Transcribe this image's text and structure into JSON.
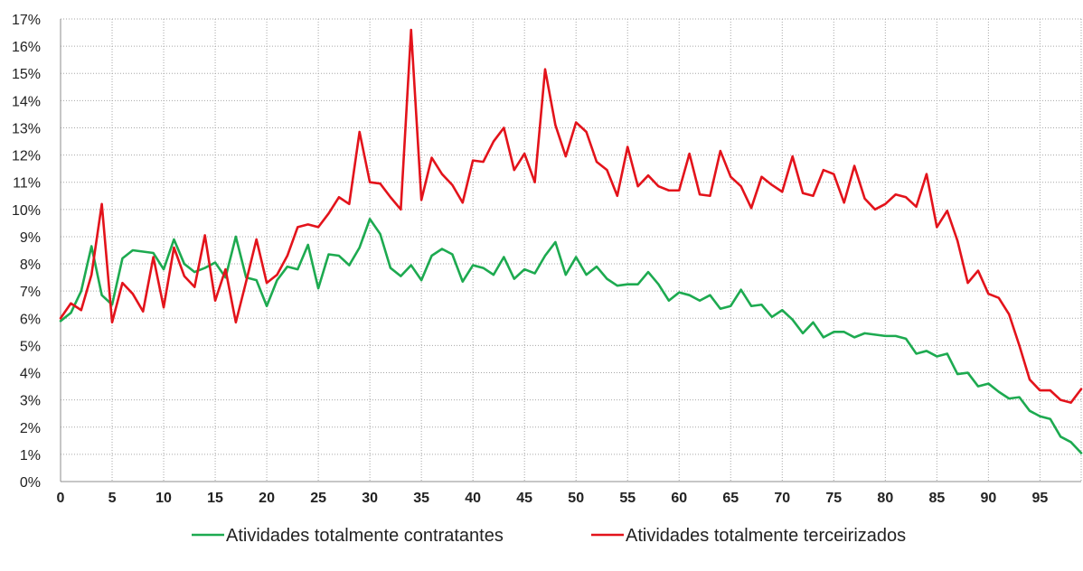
{
  "chart_data": {
    "type": "line",
    "title": "",
    "xlabel": "",
    "ylabel": "",
    "xlim": [
      0,
      99
    ],
    "ylim": [
      0,
      17
    ],
    "x_ticks": [
      0,
      5,
      10,
      15,
      20,
      25,
      30,
      35,
      40,
      45,
      50,
      55,
      60,
      65,
      70,
      75,
      80,
      85,
      90,
      95
    ],
    "x_tick_labels": [
      "0",
      "5",
      "10",
      "15",
      "20",
      "25",
      "30",
      "35",
      "40",
      "45",
      "50",
      "55",
      "60",
      "65",
      "70",
      "75",
      "80",
      "85",
      "90",
      "95"
    ],
    "y_ticks": [
      0,
      1,
      2,
      3,
      4,
      5,
      6,
      7,
      8,
      9,
      10,
      11,
      12,
      13,
      14,
      15,
      16,
      17
    ],
    "y_tick_labels": [
      "0%",
      "1%",
      "2%",
      "3%",
      "4%",
      "5%",
      "6%",
      "7%",
      "8%",
      "9%",
      "10%",
      "11%",
      "12%",
      "13%",
      "14%",
      "15%",
      "16%",
      "17%"
    ],
    "grid": "dotted",
    "legend_position": "bottom",
    "series": [
      {
        "name": "Atividades totalmente contratantes",
        "color": "#1daa50",
        "values": [
          5.9,
          6.2,
          7.0,
          8.65,
          6.85,
          6.5,
          8.2,
          8.5,
          8.45,
          8.4,
          7.8,
          8.9,
          8.0,
          7.7,
          7.85,
          8.05,
          7.5,
          9.0,
          7.5,
          7.4,
          6.45,
          7.4,
          7.9,
          7.8,
          8.7,
          7.1,
          8.35,
          8.3,
          7.95,
          8.6,
          9.65,
          9.1,
          7.85,
          7.55,
          7.95,
          7.4,
          8.3,
          8.55,
          8.35,
          7.35,
          7.95,
          7.85,
          7.6,
          8.25,
          7.45,
          7.8,
          7.65,
          8.3,
          8.8,
          7.6,
          8.25,
          7.6,
          7.9,
          7.45,
          7.2,
          7.25,
          7.25,
          7.7,
          7.25,
          6.65,
          6.95,
          6.85,
          6.65,
          6.85,
          6.35,
          6.45,
          7.05,
          6.45,
          6.5,
          6.05,
          6.3,
          5.95,
          5.45,
          5.85,
          5.3,
          5.5,
          5.5,
          5.3,
          5.45,
          5.4,
          5.35,
          5.35,
          5.25,
          4.7,
          4.8,
          4.6,
          4.7,
          3.95,
          4.0,
          3.5,
          3.6,
          3.3,
          3.05,
          3.1,
          2.6,
          2.4,
          2.3,
          1.65,
          1.45,
          1.05
        ]
      },
      {
        "name": "Atividades totalmente terceirizados",
        "color": "#e3131b",
        "values": [
          6.0,
          6.55,
          6.3,
          7.6,
          10.2,
          5.85,
          7.3,
          6.9,
          6.25,
          8.25,
          6.4,
          8.6,
          7.55,
          7.15,
          9.05,
          6.65,
          7.8,
          5.85,
          7.35,
          8.9,
          7.3,
          7.6,
          8.3,
          9.35,
          9.45,
          9.35,
          9.85,
          10.45,
          10.2,
          12.85,
          11.0,
          10.95,
          10.45,
          10.0,
          16.6,
          10.35,
          11.9,
          11.3,
          10.9,
          10.25,
          11.8,
          11.75,
          12.5,
          13.0,
          11.45,
          12.05,
          11.0,
          15.15,
          13.1,
          11.95,
          13.2,
          12.85,
          11.75,
          11.45,
          10.5,
          12.3,
          10.85,
          11.25,
          10.85,
          10.7,
          10.7,
          12.05,
          10.55,
          10.5,
          12.15,
          11.2,
          10.85,
          10.05,
          11.2,
          10.9,
          10.65,
          11.95,
          10.6,
          10.5,
          11.45,
          11.3,
          10.25,
          11.6,
          10.4,
          10.0,
          10.2,
          10.55,
          10.45,
          10.1,
          11.3,
          9.35,
          9.95,
          8.85,
          7.3,
          7.75,
          6.9,
          6.75,
          6.15,
          5.0,
          3.75,
          3.35,
          3.35,
          3.0,
          2.9,
          3.4
        ]
      }
    ]
  }
}
